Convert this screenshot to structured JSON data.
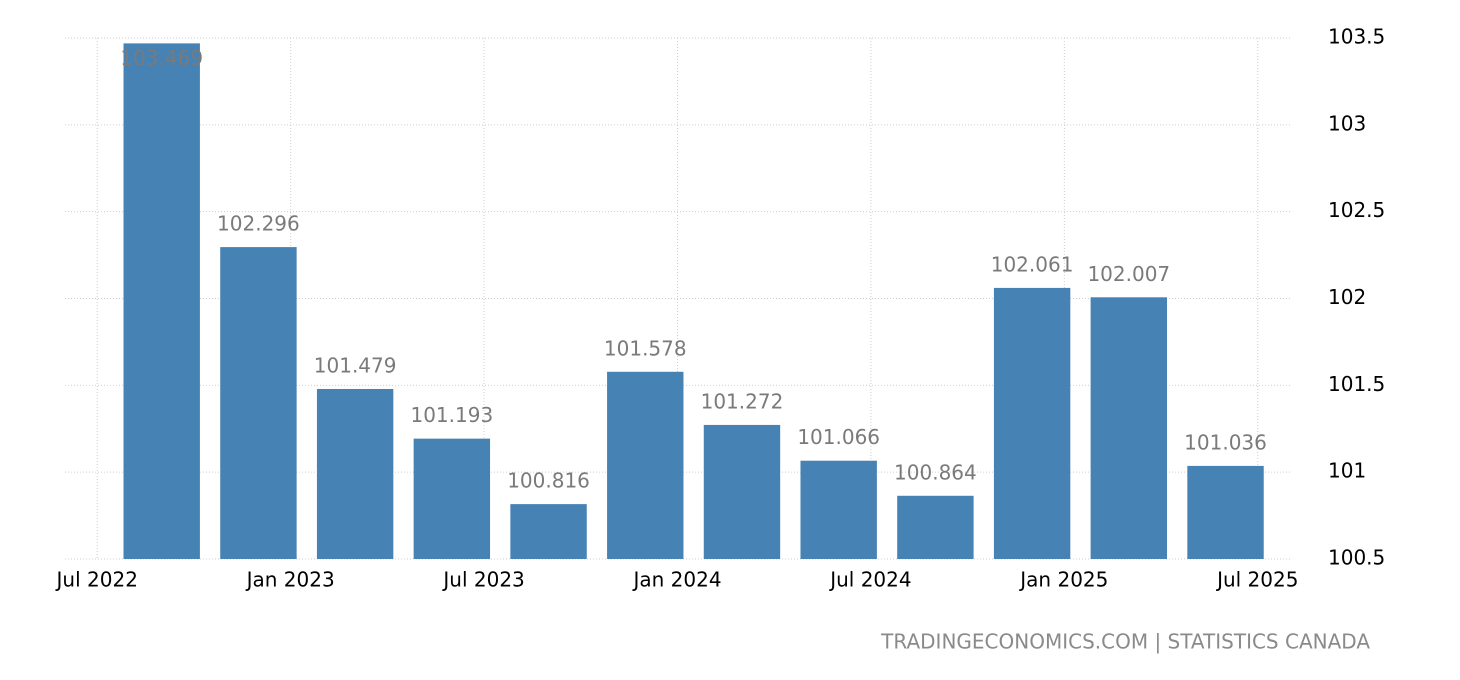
{
  "chart_data": {
    "type": "bar",
    "source": "TRADINGECONOMICS.COM | STATISTICS CANADA",
    "x": [
      "2022-09",
      "2022-12",
      "2023-03",
      "2023-06",
      "2023-09",
      "2023-12",
      "2024-03",
      "2024-06",
      "2024-09",
      "2024-12",
      "2025-03",
      "2025-06"
    ],
    "values": [
      103.469,
      102.296,
      101.479,
      101.193,
      100.816,
      101.578,
      101.272,
      101.066,
      100.864,
      102.061,
      102.007,
      101.036
    ],
    "color": "#4682b4",
    "xlim": [
      "2022-06",
      "2025-08"
    ],
    "xticks": [
      {
        "value": "2022-07",
        "label": "Jul 2022"
      },
      {
        "value": "2023-01",
        "label": "Jan 2023"
      },
      {
        "value": "2023-07",
        "label": "Jul 2023"
      },
      {
        "value": "2024-01",
        "label": "Jan 2024"
      },
      {
        "value": "2024-07",
        "label": "Jul 2024"
      },
      {
        "value": "2025-01",
        "label": "Jan 2025"
      },
      {
        "value": "2025-07",
        "label": "Jul 2025"
      }
    ],
    "ylim": [
      100.5,
      103.5
    ],
    "yticks": [
      100.5,
      101,
      101.5,
      102,
      102.5,
      103,
      103.5
    ],
    "grid": true
  }
}
